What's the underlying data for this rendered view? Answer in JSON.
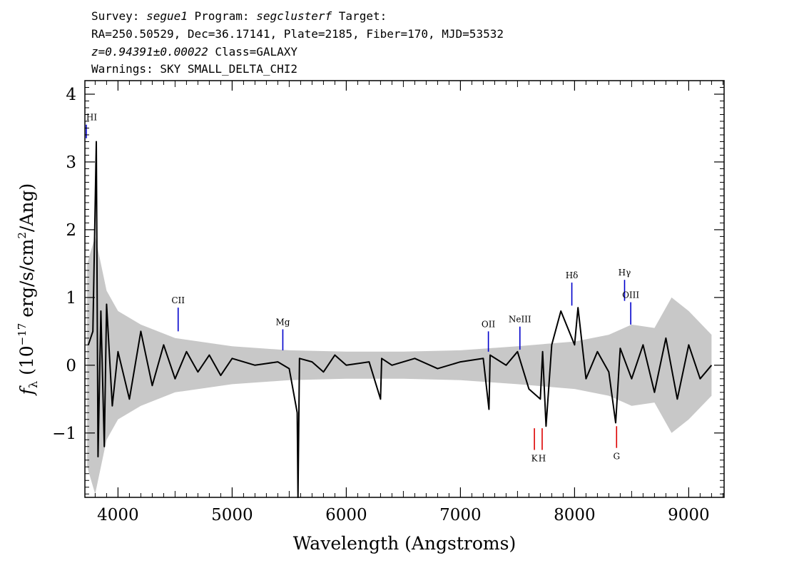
{
  "header": {
    "line1": {
      "survey_prefix": "Survey: ",
      "survey": "segue1",
      "program_prefix": " Program: ",
      "program": "segclusterf",
      "target": " Target:"
    },
    "line2": "RA=250.50529, Dec=36.17141, Plate=2185, Fiber=170, MJD=53532",
    "line3": {
      "redshift": "z=0.94391±0.00022",
      "class": " Class=GALAXY"
    },
    "line4": "Warnings: SKY SMALL_DELTA_CHI2"
  },
  "chart_data": {
    "type": "line",
    "xlabel": "Wavelength (Angstroms)",
    "ylabel_parts": {
      "symbol": "f",
      "subscript": "λ",
      "open": " (10",
      "exponent": "−17",
      "units": " erg/s/cm",
      "units_exp": "2",
      "units_tail": "/Ang)"
    },
    "xlim": [
      3710,
      9310
    ],
    "ylim": [
      -1.95,
      4.2
    ],
    "x_ticks": [
      4000,
      5000,
      6000,
      7000,
      8000,
      9000
    ],
    "x_tick_labels": [
      "4000",
      "5000",
      "6000",
      "7000",
      "8000",
      "9000"
    ],
    "y_ticks": [
      -1,
      0,
      1,
      2,
      3,
      4
    ],
    "y_tick_labels": [
      "−1",
      "0",
      "1",
      "2",
      "3",
      "4"
    ],
    "colors": {
      "flux": "#000000",
      "error": "#c8c8c8",
      "emission": "#0000cc",
      "absorption": "#dd0000"
    },
    "series": [
      {
        "x": [
          3740,
          3780,
          3810,
          3825,
          3850,
          3880,
          3900,
          3950,
          4000,
          4100,
          4200,
          4300,
          4400,
          4500,
          4600,
          4700,
          4800,
          4900,
          5000,
          5200,
          5400,
          5500,
          5570,
          5577,
          5590,
          5700,
          5800,
          5900,
          6000,
          6200,
          6300,
          6310,
          6400,
          6600,
          6800,
          7000,
          7200,
          7250,
          7260,
          7400,
          7500,
          7600,
          7700,
          7720,
          7750,
          7800,
          7880,
          8000,
          8030,
          8100,
          8200,
          8300,
          8360,
          8400,
          8500,
          8600,
          8700,
          8800,
          8900,
          9000,
          9100,
          9200
        ],
        "y": [
          0.3,
          0.5,
          3.3,
          -1.35,
          0.8,
          -1.2,
          0.9,
          -0.6,
          0.2,
          -0.5,
          0.5,
          -0.3,
          0.3,
          -0.2,
          0.2,
          -0.1,
          0.15,
          -0.15,
          0.1,
          0.0,
          0.05,
          -0.05,
          -0.7,
          -1.95,
          0.1,
          0.05,
          -0.1,
          0.15,
          0.0,
          0.05,
          -0.5,
          0.1,
          0.0,
          0.1,
          -0.05,
          0.05,
          0.1,
          -0.65,
          0.15,
          0.0,
          0.2,
          -0.35,
          -0.5,
          0.2,
          -0.9,
          0.3,
          0.8,
          0.3,
          0.85,
          -0.2,
          0.2,
          -0.1,
          -0.85,
          0.25,
          -0.2,
          0.3,
          -0.4,
          0.4,
          -0.5,
          0.3,
          -0.2,
          0.0
        ]
      }
    ],
    "error_envelope": {
      "x": [
        3730,
        3800,
        3900,
        4000,
        4200,
        4500,
        5000,
        5500,
        6000,
        6500,
        7000,
        7500,
        8000,
        8300,
        8500,
        8700,
        8850,
        9000,
        9200
      ],
      "sigma": [
        1.5,
        1.9,
        1.1,
        0.8,
        0.6,
        0.4,
        0.28,
        0.22,
        0.2,
        0.2,
        0.22,
        0.28,
        0.35,
        0.45,
        0.6,
        0.55,
        1.0,
        0.8,
        0.45
      ]
    },
    "spectral_lines": [
      {
        "label": "HI",
        "x": 3722,
        "y1": 3.55,
        "y2": 3.35,
        "kind": "emission"
      },
      {
        "label": "CII",
        "x": 4527,
        "y1": 0.85,
        "y2": 0.5,
        "kind": "emission"
      },
      {
        "label": "Mg",
        "x": 5444,
        "y1": 0.53,
        "y2": 0.22,
        "kind": "emission"
      },
      {
        "label": "OII",
        "x": 7245,
        "y1": 0.5,
        "y2": 0.2,
        "kind": "emission"
      },
      {
        "label": "NeIII",
        "x": 7521,
        "y1": 0.57,
        "y2": 0.23,
        "kind": "emission"
      },
      {
        "label": "Hδ",
        "x": 7976,
        "y1": 1.22,
        "y2": 0.88,
        "kind": "emission"
      },
      {
        "label": "Hγ",
        "x": 8438,
        "y1": 1.26,
        "y2": 0.95,
        "kind": "emission"
      },
      {
        "label": "OIII",
        "x": 8492,
        "y1": 0.93,
        "y2": 0.6,
        "kind": "emission"
      },
      {
        "label": "K",
        "x": 7648,
        "y1": -0.93,
        "y2": -1.25,
        "kind": "absorption"
      },
      {
        "label": "H",
        "x": 7716,
        "y1": -0.93,
        "y2": -1.25,
        "kind": "absorption"
      },
      {
        "label": "G",
        "x": 8368,
        "y1": -0.9,
        "y2": -1.22,
        "kind": "absorption"
      }
    ]
  }
}
